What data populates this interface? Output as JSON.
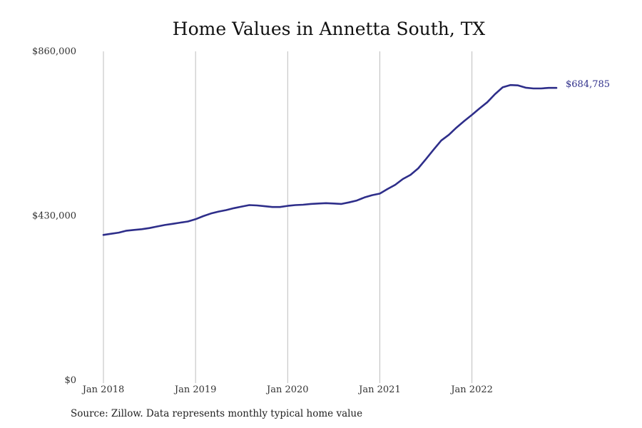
{
  "chart_data": {
    "type": "line",
    "title": "Home Values in Annetta South, TX",
    "xlabel": "",
    "ylabel": "",
    "ylim": [
      0,
      860000
    ],
    "y_ticks": [
      {
        "value": 0,
        "label": "$0"
      },
      {
        "value": 430000,
        "label": "$430,000"
      },
      {
        "value": 860000,
        "label": "$860,000"
      }
    ],
    "x_ticks": [
      {
        "index": 0,
        "label": "Jan 2018"
      },
      {
        "index": 12,
        "label": "Jan 2019"
      },
      {
        "index": 24,
        "label": "Jan 2020"
      },
      {
        "index": 36,
        "label": "Jan 2021"
      },
      {
        "index": 48,
        "label": "Jan 2022"
      }
    ],
    "grid": "vertical",
    "line_color": "#2e2e8a",
    "series": [
      {
        "x": [
          "2018-01",
          "2018-02",
          "2018-03",
          "2018-04",
          "2018-05",
          "2018-06",
          "2018-07",
          "2018-08",
          "2018-09",
          "2018-10",
          "2018-11",
          "2018-12",
          "2019-01",
          "2019-02",
          "2019-03",
          "2019-04",
          "2019-05",
          "2019-06",
          "2019-07",
          "2019-08",
          "2019-09",
          "2019-10",
          "2019-11",
          "2019-12",
          "2020-01",
          "2020-02",
          "2020-03",
          "2020-04",
          "2020-05",
          "2020-06",
          "2020-07",
          "2020-08",
          "2020-09",
          "2020-10",
          "2020-11",
          "2020-12",
          "2021-01",
          "2021-02",
          "2021-03",
          "2021-04",
          "2021-05",
          "2021-06",
          "2021-07",
          "2021-08",
          "2021-09",
          "2021-10",
          "2021-11",
          "2021-12",
          "2022-01",
          "2022-02",
          "2022-03",
          "2022-04",
          "2022-05",
          "2022-06",
          "2022-07",
          "2022-08",
          "2022-09",
          "2022-10",
          "2022-11",
          "2022-12"
        ],
        "values": [
          380000,
          383000,
          386000,
          391000,
          393000,
          395000,
          398000,
          402000,
          406000,
          409000,
          412000,
          415000,
          421000,
          429000,
          436000,
          441000,
          445000,
          450000,
          454000,
          458000,
          457000,
          455000,
          453000,
          453000,
          456000,
          458000,
          459000,
          461000,
          462000,
          463000,
          462000,
          461000,
          465000,
          470000,
          478000,
          484000,
          488000,
          500000,
          511000,
          526000,
          537000,
          554000,
          578000,
          603000,
          627000,
          642000,
          661000,
          678000,
          694000,
          711000,
          727000,
          748000,
          766000,
          772000,
          771000,
          765000,
          763000,
          763000,
          764500,
          684785
        ],
        "end_label": "$684,785"
      }
    ]
  },
  "source_note": "Source: Zillow. Data represents monthly typical home value"
}
